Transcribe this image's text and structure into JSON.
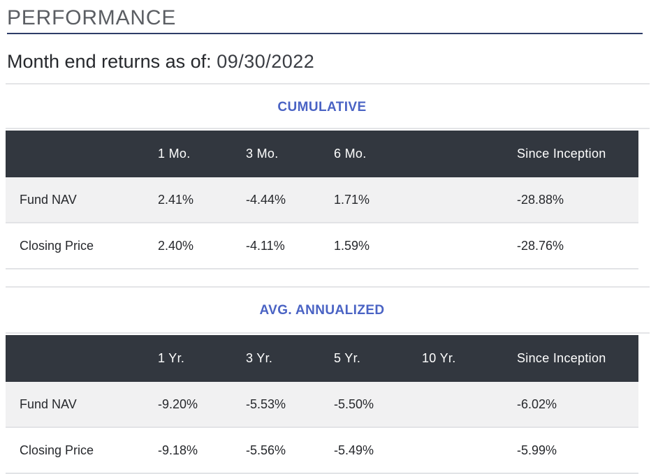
{
  "page": {
    "title": "PERFORMANCE",
    "subtitle_label": "Month end returns as of:",
    "subtitle_date": "09/30/2022"
  },
  "colors": {
    "accent_blue": "#4a63c4",
    "table_header_bg": "#32373f",
    "title_underline_navy": "#2d3c68",
    "alt_row_bg": "#f1f1f2",
    "page_title_gray": "#5b5e63"
  },
  "cumulative": {
    "title": "CUMULATIVE",
    "columns": [
      "1 Mo.",
      "3 Mo.",
      "6 Mo.",
      "",
      "Since Inception"
    ],
    "rows": [
      {
        "label": "Fund NAV",
        "values": [
          "2.41%",
          "-4.44%",
          "1.71%",
          "",
          "-28.88%"
        ]
      },
      {
        "label": "Closing Price",
        "values": [
          "2.40%",
          "-4.11%",
          "1.59%",
          "",
          "-28.76%"
        ]
      }
    ]
  },
  "avg_annualized": {
    "title": "AVG. ANNUALIZED",
    "columns": [
      "1 Yr.",
      "3 Yr.",
      "5 Yr.",
      "10 Yr.",
      "Since Inception"
    ],
    "rows": [
      {
        "label": "Fund NAV",
        "values": [
          "-9.20%",
          "-5.53%",
          "-5.50%",
          "",
          "-6.02%"
        ]
      },
      {
        "label": "Closing Price",
        "values": [
          "-9.18%",
          "-5.56%",
          "-5.49%",
          "",
          "-5.99%"
        ]
      }
    ]
  }
}
